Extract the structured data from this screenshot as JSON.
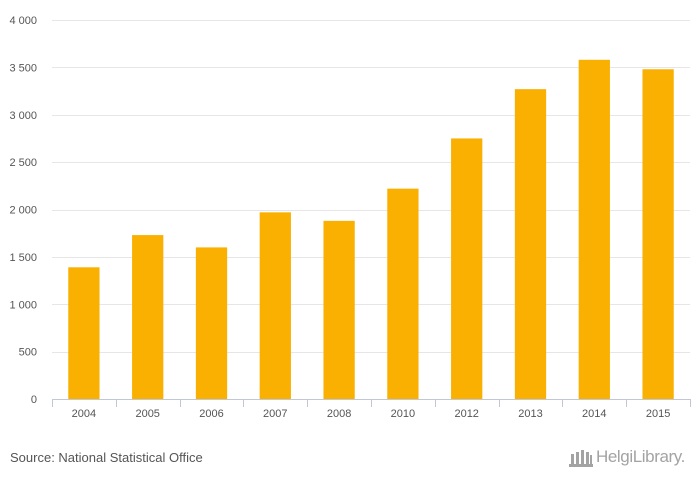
{
  "chart_data": {
    "type": "bar",
    "title": "",
    "xlabel": "",
    "ylabel": "",
    "categories": [
      "2004",
      "2005",
      "2006",
      "2007",
      "2008",
      "2010",
      "2012",
      "2013",
      "2014",
      "2015"
    ],
    "values": [
      1390,
      1730,
      1600,
      1970,
      1880,
      2220,
      2750,
      3270,
      3580,
      3480
    ],
    "ylim": [
      0,
      4000
    ],
    "yticks": [
      0,
      500,
      1000,
      1500,
      2000,
      2500,
      3000,
      3500,
      4000
    ],
    "ytick_labels": [
      "0",
      "500",
      "1 000",
      "1 500",
      "2 000",
      "2 500",
      "3 000",
      "3 500",
      "4 000"
    ],
    "grid": true,
    "bar_color": "#f9b000",
    "grid_color": "#e6e6e6",
    "axis_color": "#c0c8d8"
  },
  "footer": {
    "source": "Source: National Statistical Office",
    "logo_text": "HelgiLibrary.",
    "logo_icon": "library-building-icon"
  }
}
